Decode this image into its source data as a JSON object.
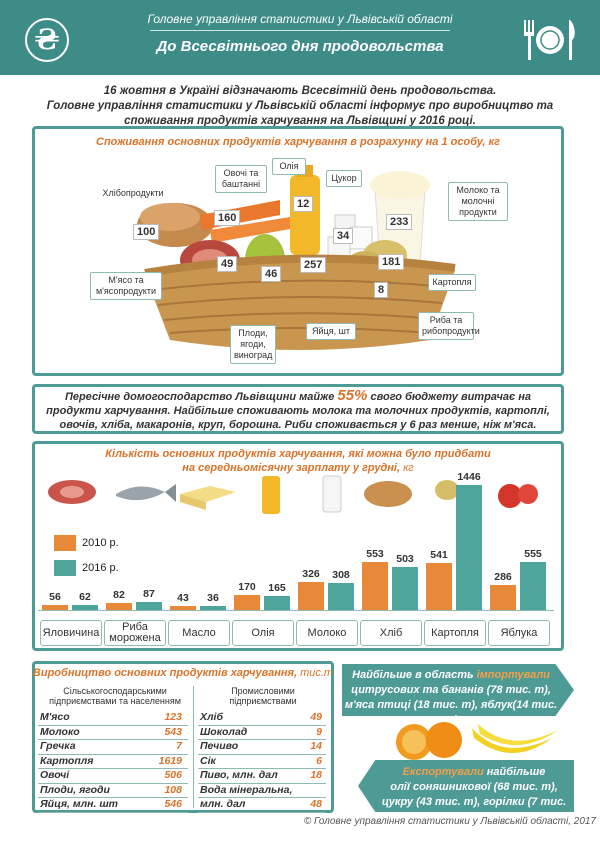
{
  "header": {
    "org": "Головне управління статистики у Львівській області",
    "title": "До Всесвітнього дня продовольства",
    "logo_glyph": "₴"
  },
  "intro": {
    "line1": "16 жовтня в Україні відзначають Всесвітній день продовольства.",
    "line2": "Головне управління статистики у Львівській області інформує про виробництво та",
    "line3": "споживання продуктів харчування на Львівщині у 2016 році."
  },
  "consumption": {
    "title": "Споживання основних продуктів харчування в розрахунку на 1 особу, кг",
    "items": [
      {
        "label": "Хлібопродукти",
        "value": "100"
      },
      {
        "label": "Овочі та баштанні",
        "value": "160"
      },
      {
        "label": "Олія",
        "value": "12"
      },
      {
        "label": "Цукор",
        "value": "34"
      },
      {
        "label": "Молоко та молочні продукти",
        "value": "233"
      },
      {
        "label": "М'ясо та м'ясопродукти",
        "value": "49"
      },
      {
        "label": "Плоди, ягоди, виноград",
        "value": "46"
      },
      {
        "label": "Яйця, шт",
        "value": "257"
      },
      {
        "label": "Картопля",
        "value": "181"
      },
      {
        "label": "Риба та рибопродукти",
        "value": "8"
      }
    ]
  },
  "budget": {
    "pre": "Пересічне домогосподарство Львівщини майже",
    "percent": "55%",
    "post": "свого бюджету витрачає на",
    "line2": "продукти харчування. Найбільше споживають молока та молочних продуктів, картоплі,",
    "line3": "овочів, хліба, макаронів, круп, борошна. Риби споживається у 6 раз менше, ніж м'яса."
  },
  "chart_data": {
    "type": "bar",
    "title_line1": "Кількість основних продуктів харчування, які можна було придбати",
    "title_line2": "на середньомісячну зарплату у грудні,",
    "unit": "кг",
    "categories": [
      "Яловичина",
      "Риба мороженa",
      "Масло",
      "Олія",
      "Молоко",
      "Хліб",
      "Картопля",
      "Яблука"
    ],
    "series": [
      {
        "name": "2010 р.",
        "color": "#e8893a",
        "values": [
          56,
          82,
          43,
          170,
          326,
          553,
          541,
          286
        ]
      },
      {
        "name": "2016 р.",
        "color": "#4fa59c",
        "values": [
          62,
          87,
          36,
          165,
          308,
          503,
          1446,
          555
        ]
      }
    ],
    "ylim": [
      0,
      1446
    ]
  },
  "production": {
    "title": "Виробництво основних продуктів харчування,",
    "unit": "тис.т",
    "col1_header": "Сільськогосподарськими підприємствами та населенням",
    "col2_header": "Промисловими підприємствами",
    "col1": [
      {
        "name": "М'ясо",
        "value": "123"
      },
      {
        "name": "Молоко",
        "value": "543"
      },
      {
        "name": "Гречка",
        "value": "7"
      },
      {
        "name": "Картопля",
        "value": "1619"
      },
      {
        "name": "Овочі",
        "value": "506"
      },
      {
        "name": "Плоди, ягоди",
        "value": "108"
      },
      {
        "name": "Яйця, млн. шт",
        "value": "546"
      }
    ],
    "col2": [
      {
        "name": "Хліб",
        "value": "49"
      },
      {
        "name": "Шоколад",
        "value": "9"
      },
      {
        "name": "Печиво",
        "value": "14"
      },
      {
        "name": "Сік",
        "value": "6"
      },
      {
        "name": "Пиво, млн. дал",
        "value": "18"
      },
      {
        "name": "Вода мінеральна,",
        "value": ""
      },
      {
        "name": "млн. дал",
        "value": "48"
      }
    ]
  },
  "import": {
    "pre": "Найбільше в область",
    "hl": "імпортували",
    "line2": "цитрусових та бананів (78 тис. т),",
    "line3": "м'яса птиці (18 тис. т), яблук(14 тис. т)"
  },
  "export": {
    "hl": "Експортували",
    "post": "найбільше",
    "line2": "олії соняшникової (68 тис. т),",
    "line3": "цукру (43 тис. т), горілки (7 тис. дал)"
  },
  "footer": "© Головне управління статистики у Львівській області, 2017"
}
